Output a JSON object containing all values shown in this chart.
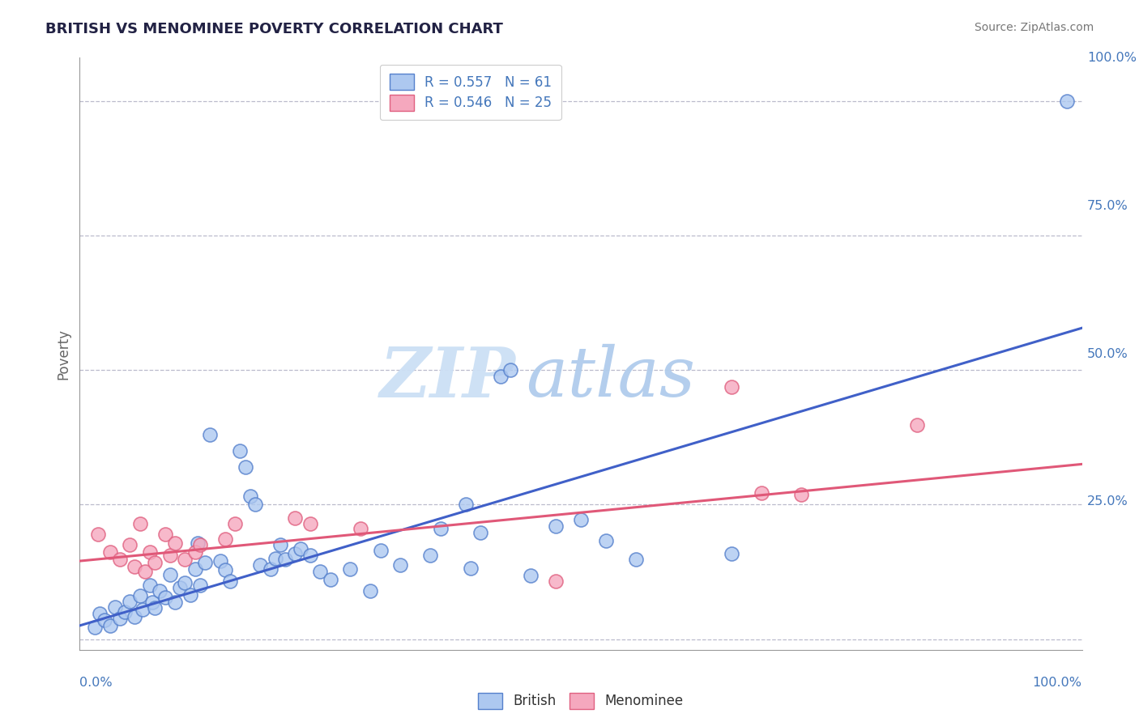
{
  "title": "BRITISH VS MENOMINEE POVERTY CORRELATION CHART",
  "source": "Source: ZipAtlas.com",
  "ylabel": "Poverty",
  "british_r": "0.557",
  "british_n": "61",
  "menominee_r": "0.546",
  "menominee_n": "25",
  "british_fill": "#adc8f0",
  "british_edge": "#5580cc",
  "menominee_fill": "#f5a8be",
  "menominee_edge": "#e06080",
  "british_line_color": "#4060c8",
  "menominee_line_color": "#e05878",
  "grid_color": "#bbbbcc",
  "title_color": "#222244",
  "source_color": "#777777",
  "axis_label_color": "#4477bb",
  "watermark_zip_color": "#cce0f5",
  "watermark_atlas_color": "#b0ccec",
  "background": "#ffffff",
  "british_scatter": [
    [
      0.015,
      0.022
    ],
    [
      0.02,
      0.048
    ],
    [
      0.025,
      0.035
    ],
    [
      0.03,
      0.025
    ],
    [
      0.035,
      0.06
    ],
    [
      0.04,
      0.038
    ],
    [
      0.045,
      0.05
    ],
    [
      0.05,
      0.07
    ],
    [
      0.055,
      0.042
    ],
    [
      0.06,
      0.08
    ],
    [
      0.063,
      0.055
    ],
    [
      0.07,
      0.1
    ],
    [
      0.072,
      0.068
    ],
    [
      0.075,
      0.058
    ],
    [
      0.08,
      0.09
    ],
    [
      0.085,
      0.078
    ],
    [
      0.09,
      0.12
    ],
    [
      0.095,
      0.068
    ],
    [
      0.1,
      0.095
    ],
    [
      0.105,
      0.105
    ],
    [
      0.11,
      0.082
    ],
    [
      0.115,
      0.13
    ],
    [
      0.118,
      0.178
    ],
    [
      0.12,
      0.1
    ],
    [
      0.125,
      0.142
    ],
    [
      0.13,
      0.38
    ],
    [
      0.14,
      0.145
    ],
    [
      0.145,
      0.128
    ],
    [
      0.15,
      0.108
    ],
    [
      0.16,
      0.35
    ],
    [
      0.165,
      0.32
    ],
    [
      0.17,
      0.265
    ],
    [
      0.175,
      0.25
    ],
    [
      0.18,
      0.138
    ],
    [
      0.19,
      0.13
    ],
    [
      0.195,
      0.15
    ],
    [
      0.2,
      0.175
    ],
    [
      0.205,
      0.148
    ],
    [
      0.215,
      0.158
    ],
    [
      0.22,
      0.168
    ],
    [
      0.23,
      0.155
    ],
    [
      0.24,
      0.125
    ],
    [
      0.25,
      0.11
    ],
    [
      0.27,
      0.13
    ],
    [
      0.29,
      0.09
    ],
    [
      0.3,
      0.165
    ],
    [
      0.32,
      0.138
    ],
    [
      0.35,
      0.155
    ],
    [
      0.36,
      0.205
    ],
    [
      0.385,
      0.25
    ],
    [
      0.39,
      0.132
    ],
    [
      0.4,
      0.198
    ],
    [
      0.42,
      0.488
    ],
    [
      0.43,
      0.5
    ],
    [
      0.45,
      0.118
    ],
    [
      0.475,
      0.21
    ],
    [
      0.5,
      0.222
    ],
    [
      0.525,
      0.182
    ],
    [
      0.555,
      0.148
    ],
    [
      0.65,
      0.158
    ],
    [
      0.985,
      1.0
    ]
  ],
  "menominee_scatter": [
    [
      0.018,
      0.195
    ],
    [
      0.03,
      0.162
    ],
    [
      0.04,
      0.148
    ],
    [
      0.05,
      0.175
    ],
    [
      0.055,
      0.135
    ],
    [
      0.06,
      0.215
    ],
    [
      0.065,
      0.125
    ],
    [
      0.07,
      0.162
    ],
    [
      0.075,
      0.142
    ],
    [
      0.085,
      0.195
    ],
    [
      0.09,
      0.155
    ],
    [
      0.095,
      0.178
    ],
    [
      0.105,
      0.148
    ],
    [
      0.115,
      0.162
    ],
    [
      0.12,
      0.175
    ],
    [
      0.145,
      0.185
    ],
    [
      0.155,
      0.215
    ],
    [
      0.215,
      0.225
    ],
    [
      0.23,
      0.215
    ],
    [
      0.28,
      0.205
    ],
    [
      0.475,
      0.108
    ],
    [
      0.65,
      0.468
    ],
    [
      0.68,
      0.272
    ],
    [
      0.72,
      0.268
    ],
    [
      0.835,
      0.398
    ]
  ],
  "british_line": [
    [
      0.0,
      0.025
    ],
    [
      1.0,
      0.578
    ]
  ],
  "menominee_line": [
    [
      0.0,
      0.145
    ],
    [
      1.0,
      0.325
    ]
  ],
  "xlim": [
    0.0,
    1.0
  ],
  "ylim": [
    -0.02,
    1.08
  ]
}
